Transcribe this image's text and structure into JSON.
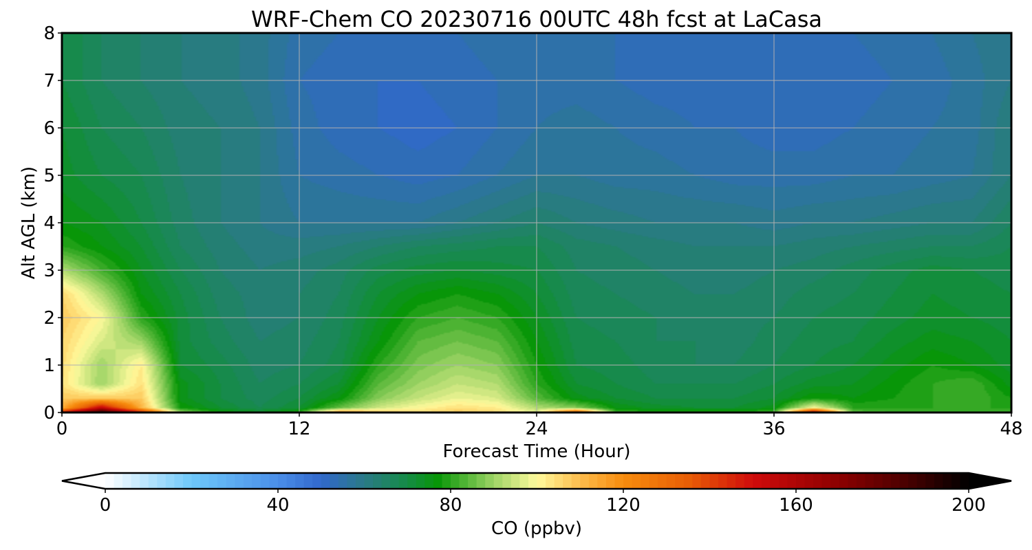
{
  "chart_data": {
    "type": "heatmap",
    "title": "WRF-Chem CO  20230716 00UTC 48h fcst at LaCasa",
    "xlabel": "Forecast Time (Hour)",
    "ylabel": "Alt AGL (km)",
    "xlim": [
      0,
      48
    ],
    "ylim": [
      0,
      8
    ],
    "xticks": [
      "0",
      "12",
      "24",
      "36",
      "48"
    ],
    "yticks": [
      "0",
      "1",
      "2",
      "3",
      "4",
      "5",
      "6",
      "7",
      "8"
    ],
    "grid": true,
    "z_label": "CO  (ppbv)",
    "z_range": [
      0,
      200
    ],
    "colorbar": {
      "ticks": [
        "0",
        "40",
        "80",
        "120",
        "160",
        "200"
      ],
      "extend": "both",
      "levels": 100,
      "colors": [
        {
          "v": 0,
          "c": "#ffffff"
        },
        {
          "v": 20,
          "c": "#6ec8fa"
        },
        {
          "v": 40,
          "c": "#4a8ee8"
        },
        {
          "v": 50,
          "c": "#3168cc"
        },
        {
          "v": 60,
          "c": "#2a7a86"
        },
        {
          "v": 70,
          "c": "#158c45"
        },
        {
          "v": 77,
          "c": "#089608"
        },
        {
          "v": 90,
          "c": "#9ed465"
        },
        {
          "v": 100,
          "c": "#fffa9c"
        },
        {
          "v": 110,
          "c": "#fcbc4c"
        },
        {
          "v": 120,
          "c": "#f78c0e"
        },
        {
          "v": 135,
          "c": "#e85e06"
        },
        {
          "v": 150,
          "c": "#cf0b0b"
        },
        {
          "v": 170,
          "c": "#8c0000"
        },
        {
          "v": 185,
          "c": "#4c0000"
        },
        {
          "v": 200,
          "c": "#000000"
        }
      ]
    },
    "grid_data": {
      "x_hours": [
        0,
        2,
        4,
        6,
        8,
        10,
        12,
        14,
        16,
        18,
        20,
        22,
        24,
        26,
        28,
        30,
        32,
        34,
        36,
        38,
        40,
        42,
        44,
        46,
        48
      ],
      "z_km": [
        0,
        0.1,
        0.3,
        0.6,
        1.0,
        1.5,
        2.0,
        2.5,
        3.0,
        3.5,
        4.0,
        5.0,
        6.0,
        7.0,
        8.0
      ],
      "values_ppbv": [
        [
          150,
          195,
          150,
          90,
          78,
          74,
          80,
          120,
          110,
          105,
          108,
          105,
          98,
          140,
          82,
          80,
          80,
          80,
          82,
          160,
          84,
          82,
          82,
          82,
          82
        ],
        [
          112,
          155,
          112,
          78,
          72,
          68,
          72,
          85,
          95,
          100,
          104,
          102,
          92,
          88,
          76,
          73,
          72,
          72,
          75,
          100,
          80,
          80,
          80,
          80,
          80
        ],
        [
          108,
          108,
          108,
          75,
          70,
          67,
          70,
          76,
          88,
          94,
          98,
          96,
          84,
          75,
          72,
          70,
          70,
          70,
          72,
          78,
          76,
          78,
          80,
          82,
          78
        ],
        [
          104,
          90,
          104,
          75,
          70,
          66,
          68,
          72,
          84,
          90,
          94,
          92,
          80,
          72,
          70,
          68,
          68,
          68,
          70,
          73,
          74,
          77,
          80,
          82,
          75
        ],
        [
          105,
          90,
          102,
          72,
          69,
          65,
          66,
          69,
          80,
          87,
          90,
          88,
          78,
          70,
          69,
          67,
          66,
          66,
          68,
          70,
          72,
          75,
          78,
          76,
          73
        ],
        [
          106,
          96,
          90,
          71,
          67,
          64,
          65,
          68,
          76,
          84,
          86,
          84,
          76,
          69,
          68,
          66,
          66,
          65,
          67,
          69,
          70,
          73,
          75,
          74,
          72
        ],
        [
          108,
          100,
          80,
          71,
          66,
          63,
          64,
          67,
          74,
          80,
          82,
          80,
          74,
          68,
          67,
          66,
          65,
          65,
          66,
          68,
          69,
          71,
          73,
          72,
          71
        ],
        [
          106,
          92,
          76,
          70,
          65,
          63,
          64,
          66,
          72,
          76,
          78,
          76,
          72,
          67,
          66,
          65,
          64,
          64,
          65,
          67,
          68,
          70,
          72,
          71,
          70
        ],
        [
          92,
          82,
          74,
          68,
          64,
          62,
          63,
          65,
          69,
          71,
          72,
          71,
          70,
          66,
          65,
          64,
          63,
          63,
          64,
          65,
          67,
          69,
          71,
          70,
          69
        ],
        [
          80,
          76,
          72,
          66,
          63,
          61,
          61,
          62,
          64,
          66,
          67,
          68,
          68,
          65,
          64,
          63,
          62,
          62,
          62,
          63,
          64,
          65,
          66,
          66,
          68
        ],
        [
          76,
          74,
          70,
          65,
          62,
          60,
          58,
          58,
          58,
          58,
          60,
          62,
          64,
          62,
          61,
          60,
          60,
          60,
          59,
          60,
          60,
          61,
          62,
          62,
          66
        ],
        [
          73,
          70,
          68,
          64,
          62,
          60,
          56,
          55,
          54,
          53,
          54,
          56,
          58,
          58,
          57,
          57,
          56,
          55,
          55,
          55,
          56,
          56,
          57,
          58,
          62
        ],
        [
          72,
          68,
          66,
          63,
          62,
          60,
          55,
          53,
          52,
          51,
          52,
          54,
          56,
          57,
          56,
          55,
          54,
          54,
          53,
          53,
          54,
          55,
          56,
          57,
          62
        ],
        [
          70,
          66,
          64,
          62,
          61,
          59,
          54,
          53,
          52,
          52,
          53,
          54,
          55,
          55,
          54,
          53,
          53,
          52,
          52,
          52,
          53,
          54,
          55,
          57,
          60
        ],
        [
          70,
          66,
          64,
          62,
          61,
          59,
          55,
          54,
          54,
          54,
          54,
          55,
          56,
          55,
          54,
          53,
          53,
          53,
          53,
          53,
          54,
          55,
          56,
          58,
          60
        ]
      ]
    }
  }
}
